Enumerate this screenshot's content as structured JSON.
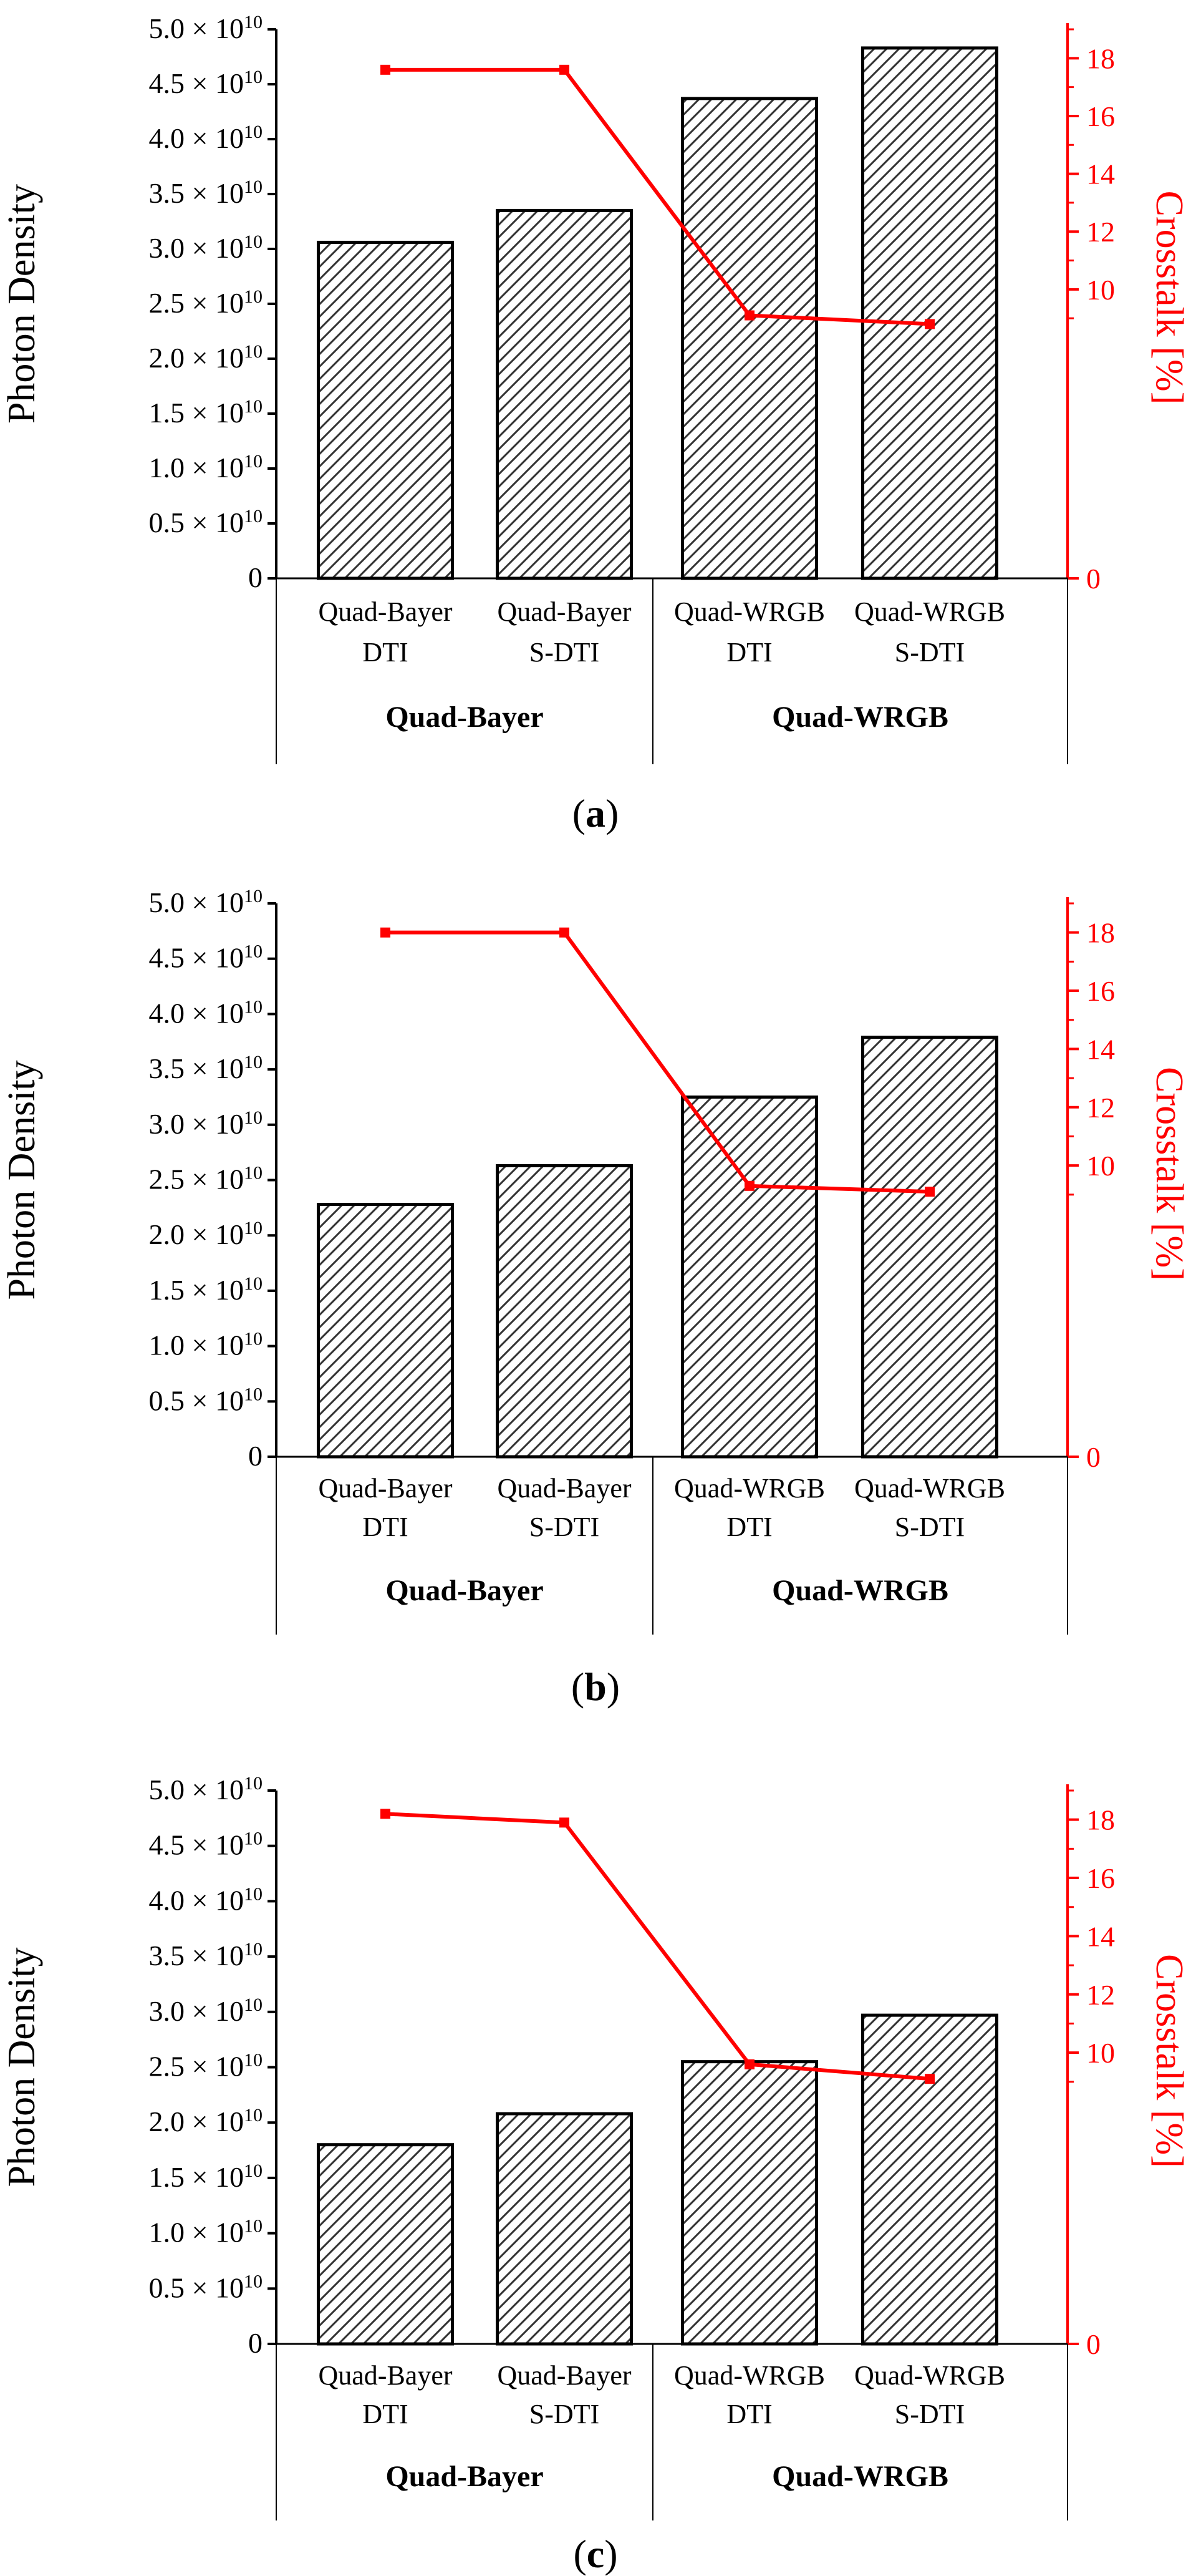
{
  "chart_data": [
    {
      "type": "bar",
      "panel_label": "a",
      "categories": [
        "Quad-Bayer DTI",
        "Quad-Bayer S-DTI",
        "Quad-WRGB DTI",
        "Quad-WRGB S-DTI"
      ],
      "category_lines": [
        [
          "Quad-Bayer",
          "DTI"
        ],
        [
          "Quad-Bayer",
          "S-DTI"
        ],
        [
          "Quad-WRGB",
          "DTI"
        ],
        [
          "Quad-WRGB",
          "S-DTI"
        ]
      ],
      "groups": [
        {
          "label": "Quad-Bayer",
          "categories": [
            "Quad-Bayer DTI",
            "Quad-Bayer S-DTI"
          ]
        },
        {
          "label": "Quad-WRGB",
          "categories": [
            "Quad-WRGB DTI",
            "Quad-WRGB S-DTI"
          ]
        }
      ],
      "series": [
        {
          "name": "Photon Density",
          "kind": "bar",
          "axis": "left",
          "values": [
            30600000000.0,
            33500000000.0,
            43700000000.0,
            48300000000.0
          ]
        },
        {
          "name": "Crosstalk [%]",
          "kind": "line",
          "axis": "right",
          "color": "#ff0000",
          "values": [
            17.6,
            17.6,
            9.1,
            8.8
          ]
        }
      ],
      "ylabel": "Photon Density",
      "y2label": "Crosstalk [%]",
      "ylim": [
        0,
        50000000000.0
      ],
      "y2lim": [
        0,
        19
      ],
      "yticks": [
        {
          "value": 0,
          "mantissa": "0",
          "exp": ""
        },
        {
          "value": 5000000000.0,
          "mantissa": "0.5 × 10",
          "exp": "10"
        },
        {
          "value": 10000000000.0,
          "mantissa": "1.0 × 10",
          "exp": "10"
        },
        {
          "value": 15000000000.0,
          "mantissa": "1.5 × 10",
          "exp": "10"
        },
        {
          "value": 20000000000.0,
          "mantissa": "2.0 × 10",
          "exp": "10"
        },
        {
          "value": 25000000000.0,
          "mantissa": "2.5 × 10",
          "exp": "10"
        },
        {
          "value": 30000000000.0,
          "mantissa": "3.0 × 10",
          "exp": "10"
        },
        {
          "value": 35000000000.0,
          "mantissa": "3.5 × 10",
          "exp": "10"
        },
        {
          "value": 40000000000.0,
          "mantissa": "4.0 × 10",
          "exp": "10"
        },
        {
          "value": 45000000000.0,
          "mantissa": "4.5 × 10",
          "exp": "10"
        },
        {
          "value": 50000000000.0,
          "mantissa": "5.0 × 10",
          "exp": "10"
        }
      ],
      "y2ticks": [
        0,
        10,
        12,
        14,
        16,
        18
      ]
    },
    {
      "type": "bar",
      "panel_label": "b",
      "categories": [
        "Quad-Bayer DTI",
        "Quad-Bayer S-DTI",
        "Quad-WRGB DTI",
        "Quad-WRGB S-DTI"
      ],
      "category_lines": [
        [
          "Quad-Bayer",
          "DTI"
        ],
        [
          "Quad-Bayer",
          "S-DTI"
        ],
        [
          "Quad-WRGB",
          "DTI"
        ],
        [
          "Quad-WRGB",
          "S-DTI"
        ]
      ],
      "groups": [
        {
          "label": "Quad-Bayer",
          "categories": [
            "Quad-Bayer DTI",
            "Quad-Bayer S-DTI"
          ]
        },
        {
          "label": "Quad-WRGB",
          "categories": [
            "Quad-WRGB DTI",
            "Quad-WRGB S-DTI"
          ]
        }
      ],
      "series": [
        {
          "name": "Photon Density",
          "kind": "bar",
          "axis": "left",
          "values": [
            22800000000.0,
            26300000000.0,
            32500000000.0,
            37900000000.0
          ]
        },
        {
          "name": "Crosstalk [%]",
          "kind": "line",
          "axis": "right",
          "color": "#ff0000",
          "values": [
            18.0,
            18.0,
            9.3,
            9.1
          ]
        }
      ],
      "ylabel": "Photon Density",
      "y2label": "Crosstalk [%]",
      "ylim": [
        0,
        50000000000.0
      ],
      "y2lim": [
        0,
        19
      ],
      "yticks": [
        {
          "value": 0,
          "mantissa": "0",
          "exp": ""
        },
        {
          "value": 5000000000.0,
          "mantissa": "0.5 × 10",
          "exp": "10"
        },
        {
          "value": 10000000000.0,
          "mantissa": "1.0 × 10",
          "exp": "10"
        },
        {
          "value": 15000000000.0,
          "mantissa": "1.5 × 10",
          "exp": "10"
        },
        {
          "value": 20000000000.0,
          "mantissa": "2.0 × 10",
          "exp": "10"
        },
        {
          "value": 25000000000.0,
          "mantissa": "2.5 × 10",
          "exp": "10"
        },
        {
          "value": 30000000000.0,
          "mantissa": "3.0 × 10",
          "exp": "10"
        },
        {
          "value": 35000000000.0,
          "mantissa": "3.5 × 10",
          "exp": "10"
        },
        {
          "value": 40000000000.0,
          "mantissa": "4.0 × 10",
          "exp": "10"
        },
        {
          "value": 45000000000.0,
          "mantissa": "4.5 × 10",
          "exp": "10"
        },
        {
          "value": 50000000000.0,
          "mantissa": "5.0 × 10",
          "exp": "10"
        }
      ],
      "y2ticks": [
        0,
        10,
        12,
        14,
        16,
        18
      ]
    },
    {
      "type": "bar",
      "panel_label": "c",
      "categories": [
        "Quad-Bayer DTI",
        "Quad-Bayer S-DTI",
        "Quad-WRGB DTI",
        "Quad-WRGB S-DTI"
      ],
      "category_lines": [
        [
          "Quad-Bayer",
          "DTI"
        ],
        [
          "Quad-Bayer",
          "S-DTI"
        ],
        [
          "Quad-WRGB",
          "DTI"
        ],
        [
          "Quad-WRGB",
          "S-DTI"
        ]
      ],
      "groups": [
        {
          "label": "Quad-Bayer",
          "categories": [
            "Quad-Bayer DTI",
            "Quad-Bayer S-DTI"
          ]
        },
        {
          "label": "Quad-WRGB",
          "categories": [
            "Quad-WRGB DTI",
            "Quad-WRGB S-DTI"
          ]
        }
      ],
      "series": [
        {
          "name": "Photon Density",
          "kind": "bar",
          "axis": "left",
          "values": [
            18000000000.0,
            20800000000.0,
            25500000000.0,
            29700000000.0
          ]
        },
        {
          "name": "Crosstalk [%]",
          "kind": "line",
          "axis": "right",
          "color": "#ff0000",
          "values": [
            18.2,
            17.9,
            9.6,
            9.1
          ]
        }
      ],
      "ylabel": "Photon Density",
      "y2label": "Crosstalk [%]",
      "ylim": [
        0,
        50000000000.0
      ],
      "y2lim": [
        0,
        19
      ],
      "yticks": [
        {
          "value": 0,
          "mantissa": "0",
          "exp": ""
        },
        {
          "value": 5000000000.0,
          "mantissa": "0.5 × 10",
          "exp": "10"
        },
        {
          "value": 10000000000.0,
          "mantissa": "1.0 × 10",
          "exp": "10"
        },
        {
          "value": 15000000000.0,
          "mantissa": "1.5 × 10",
          "exp": "10"
        },
        {
          "value": 20000000000.0,
          "mantissa": "2.0 × 10",
          "exp": "10"
        },
        {
          "value": 25000000000.0,
          "mantissa": "2.5 × 10",
          "exp": "10"
        },
        {
          "value": 30000000000.0,
          "mantissa": "3.0 × 10",
          "exp": "10"
        },
        {
          "value": 35000000000.0,
          "mantissa": "3.5 × 10",
          "exp": "10"
        },
        {
          "value": 40000000000.0,
          "mantissa": "4.0 × 10",
          "exp": "10"
        },
        {
          "value": 45000000000.0,
          "mantissa": "4.5 × 10",
          "exp": "10"
        },
        {
          "value": 50000000000.0,
          "mantissa": "5.0 × 10",
          "exp": "10"
        }
      ],
      "y2ticks": [
        0,
        10,
        12,
        14,
        16,
        18
      ]
    }
  ],
  "colors": {
    "bar_fill": "#ffffff",
    "bar_hatch": "#333333",
    "axis": "#000000",
    "crosstalk": "#ff0000"
  }
}
